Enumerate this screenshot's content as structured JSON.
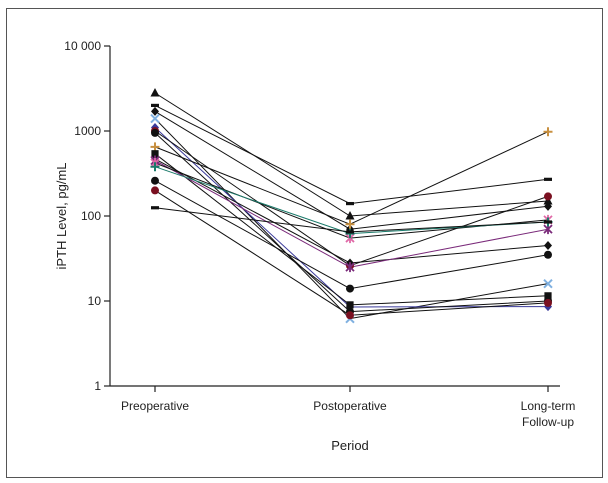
{
  "chart_data": {
    "type": "line",
    "title": "",
    "xlabel": "Period",
    "ylabel": "iPTH Level, pg/mL",
    "y_scale": "log",
    "ylim": [
      1,
      10000
    ],
    "yticks": [
      1,
      10,
      100,
      1000,
      10000
    ],
    "ytick_labels": [
      "1",
      "10",
      "100",
      "1000",
      "10 000"
    ],
    "categories": [
      [
        "Preoperative"
      ],
      [
        "Postoperative"
      ],
      [
        "Long-term",
        "Follow-up"
      ]
    ],
    "grid": false,
    "legend": "none",
    "series": [
      {
        "values": [
          2800,
          100,
          150
        ],
        "marker": "triangle",
        "color": "#111111"
      },
      {
        "values": [
          2000,
          140,
          270
        ],
        "marker": "dash",
        "color": "#111111"
      },
      {
        "values": [
          1700,
          70,
          130
        ],
        "marker": "diamond",
        "color": "#111111"
      },
      {
        "values": [
          1400,
          6.2,
          16
        ],
        "marker": "x",
        "color": "#7fb0e0"
      },
      {
        "values": [
          1100,
          8.5,
          8.6
        ],
        "marker": "diamond",
        "color": "#3a3a9a"
      },
      {
        "values": [
          1000,
          26,
          170
        ],
        "marker": "circle",
        "color": "#7a1020"
      },
      {
        "values": [
          950,
          7.5,
          10
        ],
        "marker": "circle",
        "color": "#111111"
      },
      {
        "values": [
          650,
          80,
          980
        ],
        "marker": "plus",
        "color": "#c89040"
      },
      {
        "values": [
          540,
          9,
          11.5
        ],
        "marker": "square",
        "color": "#111111"
      },
      {
        "values": [
          470,
          28,
          45
        ],
        "marker": "diamond",
        "color": "#111111"
      },
      {
        "values": [
          450,
          25,
          70
        ],
        "marker": "asterisk",
        "color": "#7a2a7a"
      },
      {
        "values": [
          420,
          55,
          90
        ],
        "marker": "asterisk",
        "color": "#e06aa8"
      },
      {
        "values": [
          380,
          62,
          85
        ],
        "marker": "plus",
        "color": "#1a7a6a"
      },
      {
        "values": [
          260,
          14,
          35
        ],
        "marker": "circle",
        "color": "#111111"
      },
      {
        "values": [
          200,
          6.8,
          9.5
        ],
        "marker": "circle",
        "color": "#7a1020"
      },
      {
        "values": [
          125,
          65,
          85
        ],
        "marker": "dash",
        "color": "#111111"
      }
    ]
  }
}
